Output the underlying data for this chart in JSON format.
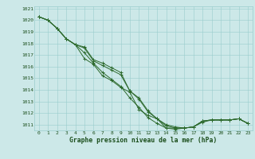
{
  "x": [
    0,
    1,
    2,
    3,
    4,
    5,
    6,
    7,
    8,
    9,
    10,
    11,
    12,
    13,
    14,
    15,
    16,
    17,
    18,
    19,
    20,
    21,
    22,
    23
  ],
  "lines": [
    [
      1020.3,
      1020.0,
      1019.3,
      1018.4,
      1017.9,
      1017.7,
      1016.6,
      1016.3,
      1015.9,
      1015.5,
      1013.9,
      1013.3,
      1012.2,
      1011.5,
      1011.0,
      1010.8,
      1010.7,
      1010.8,
      1011.3,
      1011.4,
      1011.4,
      1011.4,
      1011.5,
      1011.1
    ],
    [
      1020.3,
      1020.0,
      1019.3,
      1018.4,
      1017.9,
      1017.6,
      1016.5,
      1016.1,
      1015.7,
      1015.3,
      1013.9,
      1013.2,
      1012.1,
      1011.5,
      1010.9,
      1010.7,
      1010.7,
      1010.8,
      1011.3,
      1011.4,
      1011.4,
      1011.4,
      1011.5,
      1011.1
    ],
    [
      1020.3,
      1020.0,
      1019.3,
      1018.4,
      1017.9,
      1017.2,
      1016.3,
      1015.5,
      1014.9,
      1014.3,
      1013.3,
      1012.5,
      1011.6,
      1011.1,
      1010.7,
      1010.7,
      1010.7,
      1010.8,
      1011.3,
      1011.4,
      1011.4,
      1011.4,
      1011.5,
      1011.1
    ],
    [
      1020.3,
      1020.0,
      1019.3,
      1018.4,
      1017.9,
      1016.7,
      1016.2,
      1015.2,
      1014.8,
      1014.2,
      1013.8,
      1012.3,
      1011.8,
      1011.5,
      1010.7,
      1010.6,
      1010.7,
      1010.8,
      1011.2,
      1011.4,
      1011.4,
      1011.4,
      1011.5,
      1011.1
    ]
  ],
  "ylim_min": 1011,
  "ylim_max": 1021,
  "xlim_min": 0,
  "xlim_max": 23,
  "yticks": [
    1011,
    1012,
    1013,
    1014,
    1015,
    1016,
    1017,
    1018,
    1019,
    1020,
    1021
  ],
  "xticks": [
    0,
    1,
    2,
    3,
    4,
    5,
    6,
    7,
    8,
    9,
    10,
    11,
    12,
    13,
    14,
    15,
    16,
    17,
    18,
    19,
    20,
    21,
    22,
    23
  ],
  "xlabel": "Graphe pression niveau de la mer (hPa)",
  "line_color": "#2d6a2d",
  "bg_color": "#cce8e8",
  "grid_color": "#99cccc",
  "label_color": "#1a4d1a"
}
